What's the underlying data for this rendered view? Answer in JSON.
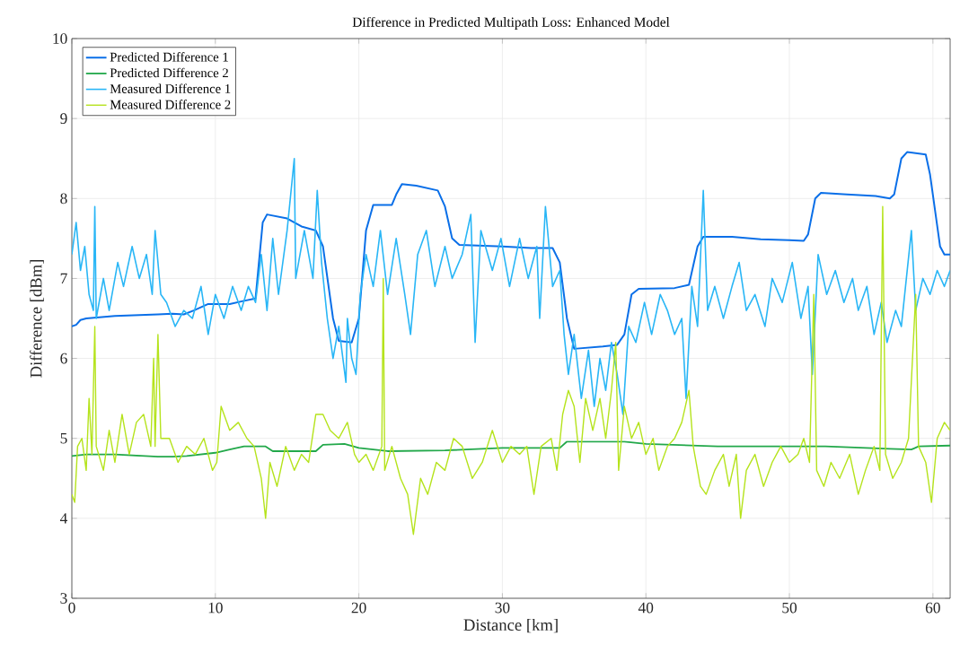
{
  "chart_data": {
    "type": "line",
    "title": "Difference in Predicted Multipath Loss: Enhanced Model",
    "xlabel": "Distance [km]",
    "ylabel": "Difference [dBm]",
    "xlim": [
      0,
      61.2
    ],
    "ylim": [
      3,
      10
    ],
    "xticks": [
      0,
      10,
      20,
      30,
      40,
      50,
      60
    ],
    "yticks": [
      3,
      4,
      5,
      6,
      7,
      8,
      9,
      10
    ],
    "grid": true,
    "legend": "top left",
    "series": [
      {
        "name": "Predicted Difference 1",
        "color": "#0a6fe8",
        "x": [
          0,
          0.3,
          0.6,
          1,
          3,
          6,
          7,
          7.8,
          8.5,
          9.5,
          11,
          12,
          12.8,
          13.3,
          13.6,
          15,
          16,
          17,
          17.5,
          18.2,
          18.6,
          19.5,
          20,
          20.5,
          21,
          22.3,
          22.6,
          23,
          24,
          25.5,
          26,
          26.5,
          27,
          30,
          32,
          33.5,
          34,
          34.5,
          35,
          37,
          38,
          38.5,
          39,
          39.5,
          42,
          43,
          43.6,
          44,
          46,
          48,
          50,
          51,
          51.3,
          51.8,
          52.2,
          54,
          56,
          57,
          57.3,
          57.8,
          58.2,
          59.5,
          59.8,
          60.5,
          60.8,
          61.2
        ],
        "values": [
          6.4,
          6.42,
          6.48,
          6.5,
          6.53,
          6.55,
          6.56,
          6.55,
          6.6,
          6.68,
          6.68,
          6.72,
          6.75,
          7.7,
          7.8,
          7.75,
          7.65,
          7.6,
          7.4,
          6.5,
          6.22,
          6.2,
          6.5,
          7.6,
          7.92,
          7.92,
          8.05,
          8.18,
          8.16,
          8.1,
          7.9,
          7.5,
          7.42,
          7.4,
          7.38,
          7.38,
          7.2,
          6.5,
          6.12,
          6.15,
          6.17,
          6.3,
          6.8,
          6.87,
          6.88,
          6.92,
          7.4,
          7.52,
          7.52,
          7.49,
          7.48,
          7.47,
          7.55,
          8.0,
          8.07,
          8.05,
          8.03,
          8.0,
          8.05,
          8.5,
          8.58,
          8.55,
          8.3,
          7.4,
          7.3,
          7.3
        ]
      },
      {
        "name": "Predicted Difference 2",
        "color": "#22a84a",
        "x": [
          0,
          1,
          3,
          6,
          7,
          8,
          10,
          11,
          12,
          13.5,
          14,
          17,
          17.5,
          19,
          20,
          22,
          26,
          30,
          33,
          34,
          34.5,
          38,
          38.5,
          40,
          45,
          50,
          52.5,
          57,
          58.5,
          59,
          61.2
        ],
        "values": [
          4.78,
          4.8,
          4.8,
          4.77,
          4.77,
          4.78,
          4.82,
          4.86,
          4.9,
          4.9,
          4.84,
          4.84,
          4.92,
          4.93,
          4.88,
          4.84,
          4.85,
          4.88,
          4.88,
          4.88,
          4.96,
          4.96,
          4.96,
          4.93,
          4.9,
          4.9,
          4.9,
          4.87,
          4.86,
          4.9,
          4.91
        ]
      },
      {
        "name": "Measured Difference 1",
        "color": "#29b6f6",
        "x": [
          0,
          0.3,
          0.6,
          0.9,
          1.2,
          1.5,
          1.6,
          1.7,
          2.2,
          2.6,
          3.2,
          3.6,
          4.2,
          4.7,
          5.2,
          5.6,
          5.8,
          6.2,
          6.6,
          7.2,
          7.8,
          8.4,
          9.0,
          9.5,
          10.0,
          10.6,
          11.2,
          11.8,
          12.3,
          12.8,
          13.2,
          13.6,
          14.0,
          14.4,
          15.0,
          15.5,
          15.6,
          16.2,
          16.8,
          17.1,
          17.4,
          17.8,
          18.2,
          18.6,
          19.1,
          19.2,
          19.5,
          19.8,
          20.1,
          20.5,
          21.0,
          21.5,
          22.0,
          22.6,
          23.2,
          23.6,
          24.1,
          24.7,
          25.3,
          26.0,
          26.5,
          27.2,
          27.8,
          28.1,
          28.5,
          29.3,
          29.9,
          30.5,
          31.2,
          31.8,
          32.4,
          32.6,
          33.0,
          33.5,
          34.0,
          34.3,
          34.6,
          35.0,
          35.5,
          36.0,
          36.4,
          36.8,
          37.2,
          37.6,
          38.0,
          38.4,
          38.8,
          39.3,
          39.9,
          40.4,
          41.0,
          41.5,
          42.0,
          42.5,
          42.8,
          43.2,
          43.6,
          44.0,
          44.3,
          44.8,
          45.4,
          46.0,
          46.5,
          47.0,
          47.6,
          48.3,
          48.8,
          49.5,
          50.2,
          50.8,
          51.3,
          51.6,
          52.0,
          52.6,
          53.2,
          53.8,
          54.4,
          54.8,
          55.4,
          55.9,
          56.4,
          56.8,
          57.4,
          57.8,
          58.5,
          58.8,
          59.3,
          59.8,
          60.3,
          60.8,
          61.2
        ],
        "values": [
          7.3,
          7.7,
          7.1,
          7.4,
          6.8,
          6.6,
          7.9,
          6.5,
          7.0,
          6.6,
          7.2,
          6.9,
          7.4,
          7.0,
          7.3,
          6.8,
          7.6,
          6.8,
          6.7,
          6.4,
          6.6,
          6.5,
          6.9,
          6.3,
          6.8,
          6.5,
          6.9,
          6.6,
          6.9,
          6.7,
          7.3,
          6.6,
          7.5,
          6.8,
          7.6,
          8.5,
          7.0,
          7.6,
          7.0,
          8.1,
          7.2,
          6.5,
          6.0,
          6.4,
          5.7,
          6.5,
          6.0,
          5.8,
          6.8,
          7.3,
          6.9,
          7.6,
          6.8,
          7.5,
          6.8,
          6.3,
          7.3,
          7.6,
          6.9,
          7.4,
          7.0,
          7.3,
          7.8,
          6.2,
          7.6,
          7.1,
          7.5,
          6.9,
          7.5,
          7.0,
          7.4,
          6.5,
          7.9,
          6.9,
          7.1,
          6.3,
          5.8,
          6.3,
          5.5,
          6.1,
          5.4,
          6.0,
          5.6,
          6.2,
          5.8,
          5.3,
          6.4,
          6.2,
          6.7,
          6.3,
          6.8,
          6.6,
          6.3,
          6.5,
          5.5,
          6.9,
          6.4,
          8.1,
          6.6,
          6.9,
          6.5,
          6.9,
          7.2,
          6.6,
          6.8,
          6.4,
          7.0,
          6.7,
          7.2,
          6.5,
          6.9,
          5.8,
          7.3,
          6.8,
          7.1,
          6.7,
          7.0,
          6.6,
          6.9,
          6.3,
          6.7,
          6.2,
          6.6,
          6.4,
          7.6,
          6.6,
          7.0,
          6.8,
          7.1,
          6.9,
          7.1
        ]
      },
      {
        "name": "Measured Difference 2",
        "color": "#b5e31c",
        "x": [
          0,
          0.2,
          0.4,
          0.7,
          1.0,
          1.2,
          1.4,
          1.6,
          1.7,
          2.2,
          2.6,
          3.0,
          3.5,
          4.0,
          4.5,
          5.0,
          5.5,
          5.7,
          5.8,
          6.0,
          6.2,
          6.8,
          7.4,
          8.0,
          8.6,
          9.2,
          9.8,
          10.1,
          10.4,
          11.0,
          11.6,
          12.2,
          12.7,
          13.2,
          13.5,
          13.8,
          14.3,
          14.9,
          15.5,
          16.0,
          16.5,
          17.0,
          17.5,
          18.0,
          18.6,
          19.2,
          19.7,
          20.0,
          20.5,
          21.0,
          21.6,
          21.7,
          21.8,
          22.3,
          22.9,
          23.4,
          23.8,
          24.3,
          24.8,
          25.4,
          26.0,
          26.6,
          27.2,
          27.9,
          28.6,
          29.3,
          30.0,
          30.6,
          31.2,
          31.7,
          32.2,
          32.7,
          33.4,
          33.8,
          34.2,
          34.6,
          35.0,
          35.4,
          35.8,
          36.3,
          36.8,
          37.2,
          37.6,
          37.9,
          38.1,
          38.5,
          39.0,
          39.5,
          40.0,
          40.5,
          40.9,
          41.5,
          42.0,
          42.5,
          43.0,
          43.3,
          43.8,
          44.2,
          44.8,
          45.4,
          45.8,
          46.3,
          46.6,
          47.0,
          47.6,
          48.2,
          48.8,
          49.4,
          50.0,
          50.6,
          51.0,
          51.4,
          51.7,
          51.9,
          52.4,
          52.9,
          53.5,
          54.2,
          54.8,
          55.3,
          55.9,
          56.3,
          56.5,
          56.7,
          57.2,
          57.8,
          58.3,
          58.8,
          59.0,
          59.5,
          59.9,
          60.3,
          60.8,
          61.2
        ],
        "values": [
          4.3,
          4.2,
          4.9,
          5.0,
          4.6,
          5.5,
          4.8,
          6.4,
          4.9,
          4.6,
          5.1,
          4.7,
          5.3,
          4.8,
          5.2,
          5.3,
          4.9,
          6.0,
          4.9,
          6.3,
          5.0,
          5.0,
          4.7,
          4.9,
          4.8,
          5.0,
          4.6,
          4.7,
          5.4,
          5.1,
          5.2,
          5.0,
          4.9,
          4.5,
          4.0,
          4.7,
          4.4,
          4.9,
          4.6,
          4.8,
          4.7,
          5.3,
          5.3,
          5.1,
          5.0,
          5.2,
          4.8,
          4.7,
          4.8,
          4.6,
          4.9,
          7.0,
          4.6,
          4.9,
          4.5,
          4.3,
          3.8,
          4.5,
          4.3,
          4.7,
          4.6,
          5.0,
          4.9,
          4.5,
          4.7,
          5.1,
          4.7,
          4.9,
          4.8,
          4.9,
          4.3,
          4.9,
          5.0,
          4.6,
          5.3,
          5.6,
          5.4,
          4.7,
          5.5,
          5.1,
          5.5,
          5.0,
          5.6,
          6.2,
          4.6,
          5.4,
          5.0,
          5.2,
          4.8,
          5.0,
          4.6,
          4.9,
          5.0,
          5.2,
          5.6,
          4.9,
          4.4,
          4.3,
          4.6,
          4.8,
          4.4,
          4.8,
          4.0,
          4.6,
          4.8,
          4.4,
          4.7,
          4.9,
          4.7,
          4.8,
          5.0,
          4.7,
          6.8,
          4.6,
          4.4,
          4.7,
          4.5,
          4.8,
          4.3,
          4.6,
          4.9,
          4.6,
          7.9,
          4.8,
          4.5,
          4.7,
          5.0,
          6.8,
          4.9,
          4.7,
          4.2,
          5.0,
          5.2,
          5.1
        ]
      }
    ]
  }
}
